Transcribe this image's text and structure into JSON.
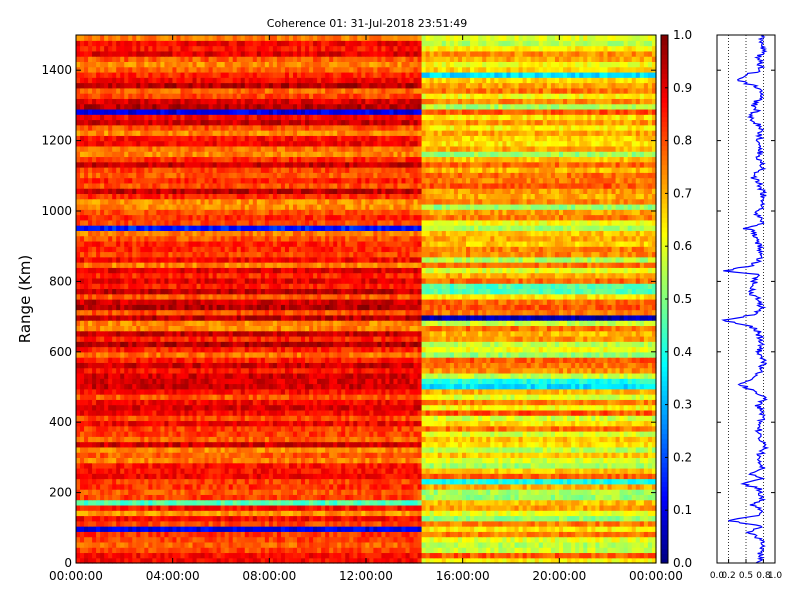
{
  "chart_data": [
    {
      "type": "heatmap",
      "title": "Coherence 01: 31-Jul-2018 23:51:49",
      "ylabel": "Range (Km)",
      "xlabel": "",
      "x_tick_labels": [
        "00:00:00",
        "04:00:00",
        "08:00:00",
        "12:00:00",
        "16:00:00",
        "20:00:00",
        "00:00:00"
      ],
      "x_range_hours": [
        0,
        24
      ],
      "y_ticks": [
        0,
        200,
        400,
        600,
        800,
        1000,
        1200,
        1400
      ],
      "ylim": [
        0,
        1500
      ],
      "range_bin_km": 15,
      "colormap": "jet",
      "clim": [
        0.0,
        1.0
      ],
      "colorbar_ticks": [
        "0.0",
        "0.1",
        "0.2",
        "0.3",
        "0.4",
        "0.5",
        "0.6",
        "0.7",
        "0.8",
        "0.9",
        "1.0"
      ],
      "time_segments": [
        {
          "start_hour": 0.0,
          "end_hour": 14.3,
          "mean_coherence": 0.84
        },
        {
          "start_hour": 14.3,
          "end_hour": 24.0,
          "mean_coherence": 0.66
        }
      ],
      "low_coherence_ranges": [
        {
          "range_km": 90,
          "segment": 1,
          "value": 0.1
        },
        {
          "range_km": 160,
          "segment": 1,
          "value": 0.45
        },
        {
          "range_km": 225,
          "segment": 2,
          "value": 0.4
        },
        {
          "range_km": 495,
          "segment": 2,
          "value": 0.35
        },
        {
          "range_km": 515,
          "segment": 2,
          "value": 0.4
        },
        {
          "range_km": 690,
          "segment": 2,
          "value": 0.05
        },
        {
          "range_km": 760,
          "segment": 2,
          "value": 0.45
        },
        {
          "range_km": 780,
          "segment": 2,
          "value": 0.45
        },
        {
          "range_km": 950,
          "segment": 1,
          "value": 0.15
        },
        {
          "range_km": 940,
          "segment": 1,
          "value": 0.45
        },
        {
          "range_km": 1275,
          "segment": 1,
          "value": 0.1
        },
        {
          "range_km": 1380,
          "segment": 2,
          "value": 0.35
        }
      ]
    },
    {
      "type": "line",
      "title": "",
      "xlabel": "",
      "ylabel": "",
      "x_tick_labels": [
        "0.0",
        "0.2",
        "0.5",
        "0.8",
        "1.0"
      ],
      "xlim": [
        0.0,
        1.0
      ],
      "ylim": [
        0,
        1500
      ],
      "line_color": "#0000ff",
      "reference_lines": [
        0.2,
        0.5,
        0.8
      ],
      "profile": [
        [
          0,
          0.72
        ],
        [
          30,
          0.75
        ],
        [
          60,
          0.8
        ],
        [
          90,
          0.55
        ],
        [
          105,
          0.78
        ],
        [
          120,
          0.2
        ],
        [
          135,
          0.7
        ],
        [
          150,
          0.78
        ],
        [
          165,
          0.62
        ],
        [
          180,
          0.8
        ],
        [
          210,
          0.74
        ],
        [
          225,
          0.45
        ],
        [
          240,
          0.76
        ],
        [
          255,
          0.58
        ],
        [
          270,
          0.8
        ],
        [
          300,
          0.72
        ],
        [
          330,
          0.82
        ],
        [
          360,
          0.7
        ],
        [
          390,
          0.75
        ],
        [
          420,
          0.8
        ],
        [
          450,
          0.7
        ],
        [
          470,
          0.85
        ],
        [
          495,
          0.55
        ],
        [
          510,
          0.4
        ],
        [
          525,
          0.6
        ],
        [
          540,
          0.72
        ],
        [
          570,
          0.8
        ],
        [
          600,
          0.72
        ],
        [
          630,
          0.76
        ],
        [
          660,
          0.7
        ],
        [
          675,
          0.55
        ],
        [
          690,
          0.1
        ],
        [
          705,
          0.6
        ],
        [
          720,
          0.78
        ],
        [
          750,
          0.72
        ],
        [
          765,
          0.6
        ],
        [
          780,
          0.58
        ],
        [
          800,
          0.65
        ],
        [
          820,
          0.72
        ],
        [
          830,
          0.15
        ],
        [
          845,
          0.6
        ],
        [
          870,
          0.78
        ],
        [
          900,
          0.72
        ],
        [
          930,
          0.65
        ],
        [
          945,
          0.6
        ],
        [
          950,
          0.5
        ],
        [
          965,
          0.78
        ],
        [
          990,
          0.7
        ],
        [
          1020,
          0.76
        ],
        [
          1050,
          0.8
        ],
        [
          1080,
          0.72
        ],
        [
          1100,
          0.6
        ],
        [
          1120,
          0.78
        ],
        [
          1150,
          0.72
        ],
        [
          1180,
          0.76
        ],
        [
          1210,
          0.72
        ],
        [
          1240,
          0.75
        ],
        [
          1270,
          0.55
        ],
        [
          1285,
          0.7
        ],
        [
          1300,
          0.62
        ],
        [
          1320,
          0.75
        ],
        [
          1350,
          0.72
        ],
        [
          1370,
          0.4
        ],
        [
          1385,
          0.45
        ],
        [
          1400,
          0.78
        ],
        [
          1430,
          0.72
        ],
        [
          1460,
          0.8
        ],
        [
          1480,
          0.76
        ],
        [
          1500,
          0.8
        ]
      ]
    }
  ]
}
